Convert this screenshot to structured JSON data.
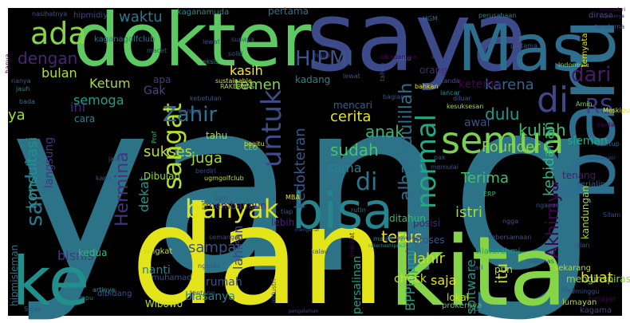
{
  "words": [
    {
      "text": "yang",
      "color": "#2c7387"
    },
    {
      "text": "dan",
      "color": "#e3e419"
    },
    {
      "text": "kita",
      "color": "#86d549"
    },
    {
      "text": "saya",
      "color": "#3d4a89"
    },
    {
      "text": "dokter",
      "color": "#5dc962"
    },
    {
      "text": "Mas",
      "color": "#2f6d8e"
    },
    {
      "text": "baru",
      "color": "#2e6f8e"
    },
    {
      "text": "ke",
      "color": "#21908d"
    },
    {
      "text": "bisa",
      "color": "#25858e"
    },
    {
      "text": "semua",
      "color": "#7ad151"
    },
    {
      "text": "di",
      "color": "#2b748e"
    },
    {
      "text": "di",
      "color": "#3f4788"
    },
    {
      "text": "banyak",
      "color": "#dde318"
    },
    {
      "text": "untuk",
      "color": "#3e4c8a"
    },
    {
      "text": "sangat",
      "color": "#b5de2b"
    },
    {
      "text": "normal",
      "color": "#22a884"
    },
    {
      "text": "Zahir",
      "color": "#2c728e"
    },
    {
      "text": "HIPMI",
      "color": "#3a548c"
    },
    {
      "text": "dari",
      "color": "#481a6c"
    },
    {
      "text": "RS",
      "color": "#433d84"
    },
    {
      "text": "ada",
      "color": "#84d44b"
    },
    {
      "text": "dengan",
      "color": "#482475"
    },
    {
      "text": "sambil",
      "color": "#2a768e"
    },
    {
      "text": "ya",
      "color": "#a0da39"
    },
    {
      "text": "kedokteran",
      "color": "#38588c"
    },
    {
      "text": "alhamdulillah",
      "color": "#2d708e"
    },
    {
      "text": "anak",
      "color": "#35b779"
    },
    {
      "text": "cerita",
      "color": "#e5e419"
    },
    {
      "text": "sudah",
      "color": "#4ac16d"
    },
    {
      "text": "kuliah",
      "color": "#40bd72"
    },
    {
      "text": "dulu",
      "color": "#1f9a8a"
    },
    {
      "text": "Akhirnya",
      "color": "#440154"
    },
    {
      "text": "kebidanan",
      "color": "#31b57b"
    },
    {
      "text": "Hermina",
      "color": "#46327e"
    },
    {
      "text": "terus",
      "color": "#f1e51d"
    },
    {
      "text": "lahir",
      "color": "#c2df23"
    },
    {
      "text": "Terima",
      "color": "#44bf70"
    },
    {
      "text": "istri",
      "color": "#a2da37"
    },
    {
      "text": "Founder",
      "color": "#8ed645"
    },
    {
      "text": "waktu",
      "color": "#2a788e"
    },
    {
      "text": "temen",
      "color": "#84d44b"
    },
    {
      "text": "bulan",
      "color": "#b8de29"
    },
    {
      "text": "Ketum",
      "color": "#a8db34"
    },
    {
      "text": "semoga",
      "color": "#1fa088"
    },
    {
      "text": "karena",
      "color": "#32658e"
    },
    {
      "text": "ketemu",
      "color": "#440256"
    },
    {
      "text": "sukses",
      "color": "#bddf26"
    },
    {
      "text": "juga",
      "color": "#a5db36"
    },
    {
      "text": "konsultasi",
      "color": "#21918c"
    },
    {
      "text": "langsung",
      "color": "#463480"
    },
    {
      "text": "sama",
      "color": "#26828e"
    },
    {
      "text": "kasih",
      "color": "#fde725"
    },
    {
      "text": "buat",
      "color": "#e7e419"
    },
    {
      "text": "itu",
      "color": "#c8e020"
    },
    {
      "text": "lahiran",
      "color": "#423f85"
    },
    {
      "text": "sampai",
      "color": "#3b518b"
    },
    {
      "text": "bisnis",
      "color": "#453781"
    },
    {
      "text": "dekat",
      "color": "#1f968b"
    },
    {
      "text": "software",
      "color": "#1f988b"
    },
    {
      "text": "BPPHipmi",
      "color": "#1f9f88"
    },
    {
      "text": "ini",
      "color": "#482677"
    },
    {
      "text": "Gak",
      "color": "#3f4889"
    },
    {
      "text": "apa",
      "color": "#443a83"
    },
    {
      "text": "pertama",
      "color": "#2c728e"
    },
    {
      "text": "hipmidiy",
      "color": "#3f4788"
    },
    {
      "text": "kaganamuda",
      "color": "#21918c"
    },
    {
      "text": "kaganagolfclub",
      "color": "#2a788e"
    },
    {
      "text": "kadang",
      "color": "#26828e"
    },
    {
      "text": "orang",
      "color": "#482878"
    },
    {
      "text": "mencari",
      "color": "#32658e"
    },
    {
      "text": "awal",
      "color": "#3b528b"
    },
    {
      "text": "tahu",
      "color": "#a5db36"
    },
    {
      "text": "posisi",
      "color": "#482475"
    },
    {
      "text": "check",
      "color": "#c8e020"
    },
    {
      "text": "saja",
      "color": "#e7e419"
    },
    {
      "text": "pun",
      "color": "#b5de2b"
    },
    {
      "text": "proses",
      "color": "#3b528b"
    },
    {
      "text": "persalinan",
      "color": "#1fa088"
    },
    {
      "text": "rumah",
      "color": "#3d4e8a"
    },
    {
      "text": "nanti",
      "color": "#26828e"
    },
    {
      "text": "biasanya",
      "color": "#24878e"
    },
    {
      "text": "kedua",
      "color": "#35b779"
    },
    {
      "text": "Wibowo",
      "color": "#c2df23"
    },
    {
      "text": "hipmisleman",
      "color": "#2c728e"
    },
    {
      "text": "kandungan",
      "color": "#a5db36"
    },
    {
      "text": "tenang",
      "color": "#481a6c"
    },
    {
      "text": "sleman",
      "color": "#22a884"
    },
    {
      "text": "terjalin",
      "color": "#3a538b"
    },
    {
      "text": "cara",
      "color": "#25848e"
    },
    {
      "text": "Dibulan",
      "color": "#9bd93c"
    },
    {
      "text": "membangun",
      "color": "#472d7b"
    },
    {
      "text": "lebih",
      "color": "#482173"
    },
    {
      "text": "ditahun",
      "color": "#35b779"
    },
    {
      "text": "sekarang",
      "color": "#b8de29"
    },
    {
      "text": "menginspirasi",
      "color": "#95d840"
    },
    {
      "text": "silaturahmi",
      "color": "#1f9e89"
    },
    {
      "text": "lokal",
      "color": "#c8e020"
    },
    {
      "text": "prokernya",
      "color": "#5ec962"
    },
    {
      "text": "bagi",
      "color": "#31688e"
    },
    {
      "text": "belajar",
      "color": "#440154"
    },
    {
      "text": "kagama",
      "color": "#3e4989"
    },
    {
      "text": "lumayan",
      "color": "#b5de2b"
    },
    {
      "text": "singkat",
      "color": "#c8e020"
    },
    {
      "text": "muhamad",
      "color": "#3b528b"
    },
    {
      "text": "dibidang",
      "color": "#3b528b"
    },
    {
      "text": "Indonesia",
      "color": "#7ad151"
    },
    {
      "text": "ternyata",
      "color": "#e5e419"
    },
    {
      "text": "akuntansi",
      "color": "#2c728e"
    },
    {
      "text": "sustainable",
      "color": "#dde318"
    },
    {
      "text": "startup",
      "color": "#31688e"
    },
    {
      "text": "Amin",
      "color": "#7ad151"
    },
    {
      "text": "dinda",
      "color": "#440154"
    },
    {
      "text": "kebetulan",
      "color": "#3b528b"
    },
    {
      "text": "RAKERNAS",
      "color": "#a5db36"
    },
    {
      "text": "bareng",
      "color": "#3b528b"
    },
    {
      "text": "Prof",
      "color": "#35b779"
    },
    {
      "text": "CEO",
      "color": "#84d44b"
    },
    {
      "text": "MBA",
      "color": "#e7e419"
    },
    {
      "text": "berdiri",
      "color": "#3e4989"
    },
    {
      "text": "ugmgolfclub",
      "color": "#c2df23"
    },
    {
      "text": "sat",
      "color": "#3b528b"
    },
    {
      "text": "hanya",
      "color": "#440154"
    },
    {
      "text": "kesuksesan",
      "color": "#a5db36"
    },
    {
      "text": "Meskipun",
      "color": "#e5e419"
    },
    {
      "text": "UGM",
      "color": "#2c728e"
    },
    {
      "text": "dirasa",
      "color": "#3e4989"
    },
    {
      "text": "menyadari",
      "color": "#440154"
    },
    {
      "text": "lewat",
      "color": "#3b528b"
    },
    {
      "text": "eksis",
      "color": "#24878e"
    },
    {
      "text": "macet",
      "color": "#3b528b"
    },
    {
      "text": "kebersamaan",
      "color": "#3b528b"
    },
    {
      "text": "tentang",
      "color": "#3e4989"
    },
    {
      "text": "satu",
      "color": "#2c728e"
    },
    {
      "text": "jauh",
      "color": "#21918c"
    },
    {
      "text": "seminggu",
      "color": "#3b528b"
    },
    {
      "text": "perusahaan",
      "color": "#25848e"
    },
    {
      "text": "terutama",
      "color": "#3b528b"
    },
    {
      "text": "kepalanya",
      "color": "#472d7b"
    },
    {
      "text": "begitu",
      "color": "#e5e419"
    },
    {
      "text": "artinya",
      "color": "#21918c"
    },
    {
      "text": "lancar",
      "color": "#21918c"
    },
    {
      "text": "bahkan",
      "color": "#e5e419"
    },
    {
      "text": "diluar",
      "color": "#3b528b"
    },
    {
      "text": "asal",
      "color": "#3e4989"
    },
    {
      "text": "masih",
      "color": "#25848e"
    },
    {
      "text": "ERP",
      "color": "#35b779"
    },
    {
      "text": "ugm",
      "color": "#3b528b"
    },
    {
      "text": "kanda",
      "color": "#3b528b"
    },
    {
      "text": "dibadannya",
      "color": "#440154"
    },
    {
      "text": "rutin",
      "color": "#2c728e"
    },
    {
      "text": "sekhamatir",
      "color": "#3b528b"
    },
    {
      "text": "tiap",
      "color": "#3b528b"
    },
    {
      "text": "melihat",
      "color": "#440154"
    },
    {
      "text": "lampu",
      "color": "#2c728e"
    },
    {
      "text": "Silam",
      "color": "#3e4989"
    },
    {
      "text": "rakernashipmi2023",
      "color": "#21918c"
    },
    {
      "text": "semangat",
      "color": "#3e4989"
    },
    {
      "text": "ngecek",
      "color": "#3b528b"
    },
    {
      "text": "kami",
      "color": "#3b528b"
    },
    {
      "text": "Sejak",
      "color": "#3b528b"
    },
    {
      "text": "nanya",
      "color": "#3b528b"
    },
    {
      "text": "mulai",
      "color": "#3e4989"
    },
    {
      "text": "kecil",
      "color": "#3b528b"
    },
    {
      "text": "bagian",
      "color": "#3b528b"
    },
    {
      "text": "menggunakan",
      "color": "#3e4989"
    },
    {
      "text": "mengenai",
      "color": "#3b528b"
    },
    {
      "text": "industri",
      "color": "#3b528b"
    },
    {
      "text": "pengalaman",
      "color": "#3e4989"
    },
    {
      "text": "bada",
      "color": "#2c728e"
    },
    {
      "text": "bagi",
      "color": "#3b528b"
    },
    {
      "text": "jadi",
      "color": "#3b528b"
    },
    {
      "text": "pak",
      "color": "#3b528b"
    },
    {
      "text": "tahun",
      "color": "#3b528b"
    },
    {
      "text": "supaya",
      "color": "#3e4989"
    },
    {
      "text": "solid",
      "color": "#3b528b"
    },
    {
      "text": "hari",
      "color": "#3b528b"
    },
    {
      "text": "nganan",
      "color": "#3b528b"
    },
    {
      "text": "ujian",
      "color": "#3b528b"
    },
    {
      "text": "ngga",
      "color": "#3b528b"
    },
    {
      "text": "kalau",
      "color": "#3e4989"
    },
    {
      "text": "memulai",
      "color": "#3b528b"
    },
    {
      "text": "nasihatnya",
      "color": "#3b528b"
    },
    {
      "text": "lewat",
      "color": "#3b528b"
    },
    {
      "text": "pratama",
      "color": "#3b528b"
    },
    {
      "text": "rakernas",
      "color": "#3b528b"
    }
  ]
}
